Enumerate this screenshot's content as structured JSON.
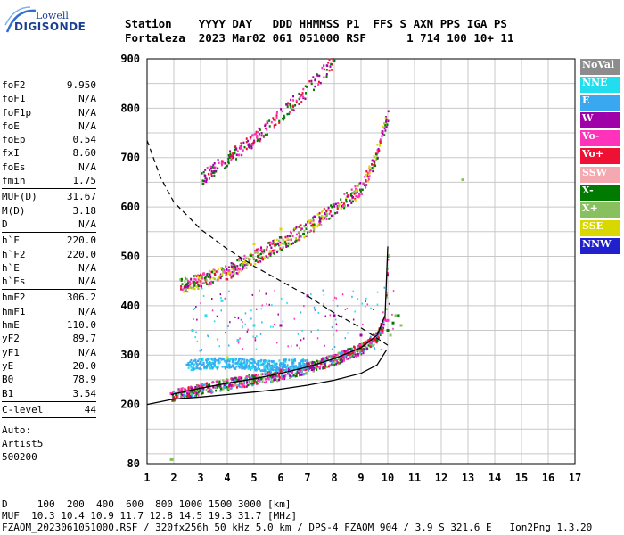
{
  "logo": {
    "line1": "Lowell",
    "line2": "DIGISONDE"
  },
  "header": {
    "line1": "Station    YYYY DAY   DDD HHMMSS P1  FFS S AXN PPS IGA PS",
    "line2": "Fortaleza  2023 Mar02 061 051000 RSF      1 714 100 10+ 11"
  },
  "params": {
    "group1": [
      {
        "name": "foF2",
        "value": "9.950"
      },
      {
        "name": "foF1",
        "value": "N/A"
      },
      {
        "name": "foF1p",
        "value": "N/A"
      },
      {
        "name": "foE",
        "value": "N/A"
      },
      {
        "name": "foEp",
        "value": "0.54"
      },
      {
        "name": "fxI",
        "value": "8.60"
      },
      {
        "name": "foEs",
        "value": "N/A"
      },
      {
        "name": "fmin",
        "value": "1.75"
      }
    ],
    "group2": [
      {
        "name": "MUF(D)",
        "value": "31.67"
      },
      {
        "name": "M(D)",
        "value": "3.18"
      },
      {
        "name": "D",
        "value": "N/A"
      }
    ],
    "group3": [
      {
        "name": "h`F",
        "value": "220.0"
      },
      {
        "name": "h`F2",
        "value": "220.0"
      },
      {
        "name": "h`E",
        "value": "N/A"
      },
      {
        "name": "h`Es",
        "value": "N/A"
      }
    ],
    "group4": [
      {
        "name": "hmF2",
        "value": "306.2"
      },
      {
        "name": "hmF1",
        "value": "N/A"
      },
      {
        "name": "hmE",
        "value": "110.0"
      },
      {
        "name": "yF2",
        "value": "89.7"
      },
      {
        "name": "yF1",
        "value": "N/A"
      },
      {
        "name": "yE",
        "value": "20.0"
      },
      {
        "name": "B0",
        "value": "78.9"
      },
      {
        "name": "B1",
        "value": "3.54"
      }
    ],
    "group5": [
      {
        "name": "C-level",
        "value": "44"
      }
    ]
  },
  "auto": {
    "line1": "Auto:",
    "line2": "Artist5",
    "line3": "500200"
  },
  "legend": [
    {
      "label": "NoVal",
      "color": "#8c8c8c"
    },
    {
      "label": "NNE",
      "color": "#22ddee"
    },
    {
      "label": "E",
      "color": "#3aa8f0"
    },
    {
      "label": "W",
      "color": "#a000a8"
    },
    {
      "label": "Vo-",
      "color": "#ff33bb"
    },
    {
      "label": "Vo+",
      "color": "#ee1133"
    },
    {
      "label": "SSW",
      "color": "#f4a8b0"
    },
    {
      "label": "X-",
      "color": "#007a00"
    },
    {
      "label": "X+",
      "color": "#88c060"
    },
    {
      "label": "SSE",
      "color": "#d8d800"
    },
    {
      "label": "NNW",
      "color": "#2020cc"
    }
  ],
  "footer": {
    "line1": "D     100  200  400  600  800 1000 1500 3000 [km]",
    "line2": "MUF  10.3 10.4 10.9 11.7 12.8 14.5 19.3 31.7 [MHz]",
    "line3": "FZAOM_2023061051000.RSF / 320fx256h 50 kHz 5.0 km / DPS-4 FZAOM 904 / 3.9 S 321.6 E   Ion2Png 1.3.20"
  },
  "chart_data": {
    "type": "scatter",
    "xlim": [
      1,
      17
    ],
    "ylim": [
      80,
      900
    ],
    "x_ticks": [
      "1",
      "2",
      "3",
      "4",
      "5",
      "6",
      "7",
      "8",
      "9",
      "10",
      "11",
      "12",
      "13",
      "14",
      "15",
      "16",
      "17"
    ],
    "y_ticks": [
      "80",
      "200",
      "300",
      "400",
      "500",
      "600",
      "700",
      "800",
      "900"
    ],
    "grid": true,
    "series": [
      {
        "name": "Vo-",
        "color": "#ff33bb",
        "x": [
          1.9,
          2.5,
          3.0,
          4.0,
          5.0,
          6.0,
          7.0,
          8.0,
          8.5,
          9.0,
          9.5,
          9.8,
          10.0
        ],
        "y": [
          222,
          228,
          236,
          248,
          258,
          270,
          284,
          298,
          306,
          318,
          330,
          345,
          370
        ]
      },
      {
        "name": "X-",
        "color": "#007a00",
        "x": [
          2.4,
          3.0,
          4.0,
          5.0,
          6.0,
          7.0,
          8.0,
          9.0,
          9.6,
          10.0,
          10.2,
          10.4
        ],
        "y": [
          226,
          232,
          244,
          256,
          268,
          282,
          296,
          314,
          330,
          350,
          365,
          380
        ]
      },
      {
        "name": "E",
        "color": "#3aa8f0",
        "x": [
          2.5,
          3.0,
          3.5,
          4.0,
          4.5,
          5.0,
          5.5,
          6.0,
          6.5
        ],
        "y": [
          280,
          285,
          283,
          288,
          282,
          286,
          279,
          283,
          277
        ]
      },
      {
        "name": "NNE",
        "color": "#22ddee",
        "x": [
          2.7,
          3.2,
          3.8,
          4.4,
          5.0
        ],
        "y": [
          350,
          380,
          410,
          330,
          360
        ]
      },
      {
        "name": "W",
        "color": "#a000a8",
        "x": [
          6.0,
          7.0,
          8.0,
          9.0
        ],
        "y": [
          360,
          420,
          380,
          340
        ]
      },
      {
        "name": "Vo+",
        "color": "#ee1133",
        "x": [
          6.0,
          7.0,
          8.0,
          9.0,
          9.5,
          9.8
        ],
        "y": [
          268,
          280,
          296,
          316,
          332,
          350
        ]
      },
      {
        "name": "X+",
        "color": "#88c060",
        "x": [
          10.1,
          10.3,
          10.5,
          12.8
        ],
        "y": [
          340,
          380,
          360,
          655
        ]
      },
      {
        "name": "SSE",
        "color": "#d8d800",
        "x": [
          4.0,
          5.0,
          6.0
        ],
        "y": [
          295,
          525,
          555
        ]
      }
    ],
    "second_hop": {
      "x": [
        2.2,
        3.0,
        4.0,
        5.0,
        6.0,
        7.0,
        8.0,
        9.0,
        9.5,
        10.0
      ],
      "y": [
        442,
        452,
        470,
        500,
        530,
        560,
        600,
        640,
        700,
        790
      ]
    },
    "third_hop": {
      "x": [
        3.0,
        4.0,
        5.0,
        6.0,
        7.0,
        8.0
      ],
      "y": [
        660,
        700,
        740,
        790,
        840,
        900
      ]
    },
    "profile": {
      "x": [
        1.0,
        2.0,
        3.0,
        4.0,
        5.0,
        6.0,
        7.0,
        8.0,
        9.0,
        9.6,
        9.95
      ],
      "y": [
        200,
        211,
        215,
        220,
        225,
        231,
        239,
        249,
        263,
        280,
        310
      ]
    },
    "trace": {
      "x": [
        1.9,
        3.0,
        4.0,
        5.0,
        6.0,
        7.0,
        8.0,
        9.0,
        9.6,
        9.9,
        10.0
      ],
      "y": [
        220,
        233,
        243,
        252,
        263,
        276,
        293,
        315,
        340,
        380,
        520
      ]
    },
    "muf_curve": {
      "x": [
        1.0,
        1.5,
        2.0,
        3.0,
        4.0,
        5.0,
        6.0,
        7.0,
        8.0,
        9.0,
        10.0
      ],
      "y": [
        735,
        660,
        610,
        555,
        515,
        480,
        450,
        420,
        385,
        355,
        320
      ]
    }
  }
}
